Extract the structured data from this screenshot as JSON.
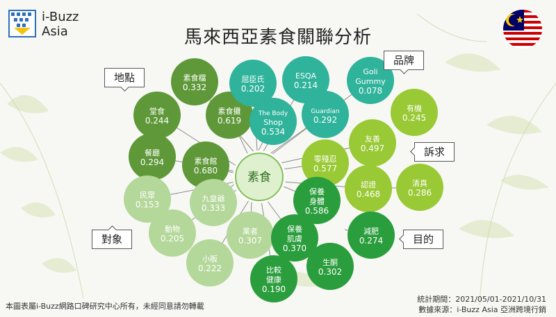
{
  "brand": {
    "line1": "i-Buzz",
    "line2": "Asia"
  },
  "title": "馬來西亞素食關聯分析",
  "footer": {
    "copyright": "本圖表屬i-Buzz網路口碑研究中心所有，未經同意請勿轉載",
    "period": "統計期間：2021/05/01-2021/10/31",
    "source": "數據來源：i-Buzz Asia 亞洲跨境行銷"
  },
  "center": {
    "label": "素食"
  },
  "tags": {
    "place": "地點",
    "brand": "品牌",
    "demand": "訴求",
    "audience": "對象",
    "purpose": "目的"
  },
  "colors": {
    "place": "#5e9838",
    "brand": "#2fb39b",
    "demand": "#99c934",
    "audience": "#b4d79a",
    "purpose": "#2a9d3c",
    "center_fill": "#dff0cf",
    "center_ring": "#7fbf55"
  },
  "nodes": [
    {
      "group": "place",
      "lines": [
        "素食檔"
      ],
      "value": "0.332"
    },
    {
      "group": "place",
      "lines": [
        "堂食"
      ],
      "value": "0.244"
    },
    {
      "group": "place",
      "lines": [
        "素食攤"
      ],
      "value": "0.619"
    },
    {
      "group": "place",
      "lines": [
        "餐廳"
      ],
      "value": "0.294"
    },
    {
      "group": "place",
      "lines": [
        "素食館"
      ],
      "value": "0.680"
    },
    {
      "group": "brand",
      "lines": [
        "屈臣氏"
      ],
      "value": "0.202"
    },
    {
      "group": "brand",
      "lines": [
        "ESQA"
      ],
      "value": "0.214"
    },
    {
      "group": "brand",
      "lines": [
        "Goli",
        "Gummy"
      ],
      "value": "0.078"
    },
    {
      "group": "brand",
      "lines": [
        "The Body",
        "Shop"
      ],
      "value": "0.534"
    },
    {
      "group": "brand",
      "lines": [
        "Guardian"
      ],
      "value": "0.292"
    },
    {
      "group": "demand",
      "lines": [
        "有機"
      ],
      "value": "0.245"
    },
    {
      "group": "demand",
      "lines": [
        "友善"
      ],
      "value": "0.497"
    },
    {
      "group": "demand",
      "lines": [
        "零殘忍"
      ],
      "value": "0.577"
    },
    {
      "group": "demand",
      "lines": [
        "認證"
      ],
      "value": "0.468"
    },
    {
      "group": "demand",
      "lines": [
        "清真"
      ],
      "value": "0.286"
    },
    {
      "group": "audience",
      "lines": [
        "民眾"
      ],
      "value": "0.153"
    },
    {
      "group": "audience",
      "lines": [
        "九皇爺"
      ],
      "value": "0.333"
    },
    {
      "group": "audience",
      "lines": [
        "動物"
      ],
      "value": "0.205"
    },
    {
      "group": "audience",
      "lines": [
        "業者"
      ],
      "value": "0.307"
    },
    {
      "group": "audience",
      "lines": [
        "小販"
      ],
      "value": "0.222"
    },
    {
      "group": "purpose",
      "lines": [
        "保養",
        "身體"
      ],
      "value": "0.586"
    },
    {
      "group": "purpose",
      "lines": [
        "保養",
        "肌膚"
      ],
      "value": "0.370"
    },
    {
      "group": "purpose",
      "lines": [
        "減肥"
      ],
      "value": "0.274"
    },
    {
      "group": "purpose",
      "lines": [
        "生酮"
      ],
      "value": "0.302"
    },
    {
      "group": "purpose",
      "lines": [
        "比較",
        "健康"
      ],
      "value": "0.190"
    }
  ]
}
